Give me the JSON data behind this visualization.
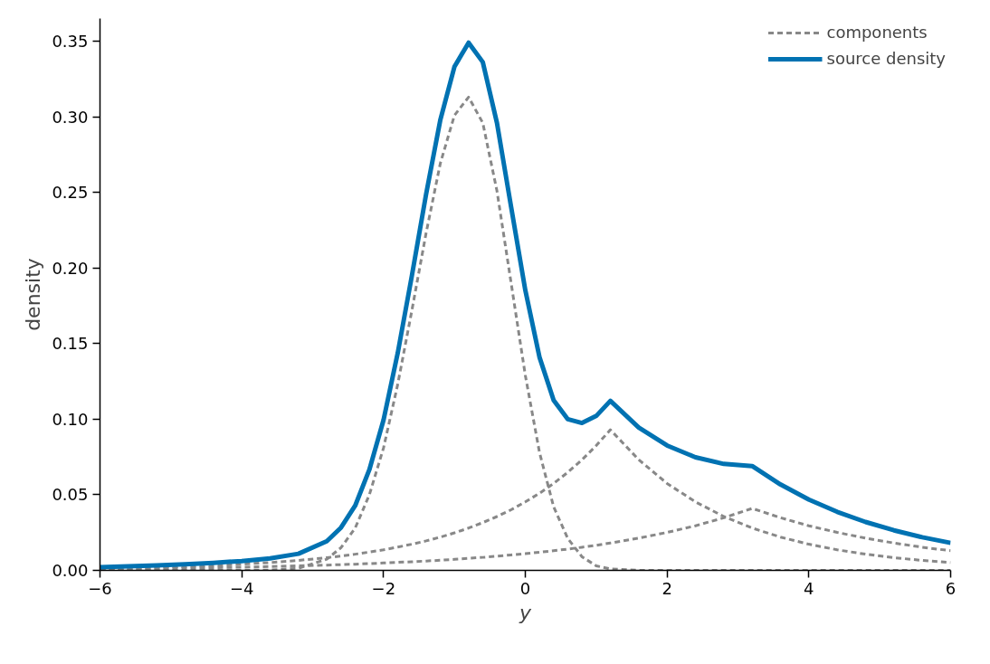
{
  "chart_data": {
    "type": "line",
    "xlabel": "y",
    "ylabel": "density",
    "x": [
      -6,
      -5.6,
      -5.2,
      -4.8,
      -4.4,
      -4,
      -3.6,
      -3.2,
      -2.8,
      -2.6,
      -2.4,
      -2.2,
      -2,
      -1.8,
      -1.6,
      -1.4,
      -1.2,
      -1,
      -0.8,
      -0.6,
      -0.4,
      -0.2,
      0,
      0.2,
      0.4,
      0.6,
      0.8,
      1,
      1.2,
      1.6,
      2,
      2.4,
      2.8,
      3.2,
      3.6,
      4,
      4.4,
      4.8,
      5.2,
      5.6,
      6
    ],
    "series": [
      {
        "name": "components",
        "color": "#888888",
        "line_style": "dashed",
        "values": [
          0,
          0,
          0,
          0,
          0,
          0,
          0.0002,
          0.0014,
          0.0074,
          0.015,
          0.028,
          0.05,
          0.081,
          0.123,
          0.172,
          0.223,
          0.269,
          0.301,
          0.313,
          0.296,
          0.251,
          0.19,
          0.129,
          0.078,
          0.042,
          0.021,
          0.009,
          0.003,
          0.001,
          0,
          0,
          0,
          0,
          0,
          0,
          0,
          0,
          0,
          0,
          0,
          0
        ]
      },
      {
        "color": "#888888",
        "line_style": "dashed",
        "values": [
          0.0012,
          0.0016,
          0.002,
          0.0025,
          0.0032,
          0.0041,
          0.0052,
          0.0066,
          0.0084,
          0.0095,
          0.0107,
          0.0121,
          0.0136,
          0.0154,
          0.0173,
          0.0195,
          0.022,
          0.0248,
          0.028,
          0.0316,
          0.0356,
          0.0401,
          0.0453,
          0.051,
          0.0575,
          0.0649,
          0.0732,
          0.0825,
          0.093,
          0.0732,
          0.0575,
          0.0453,
          0.0356,
          0.028,
          0.022,
          0.0173,
          0.0136,
          0.0107,
          0.0084,
          0.0066,
          0.0052
        ]
      },
      {
        "color": "#888888",
        "line_style": "dashed",
        "values": [
          0.0009,
          0.0011,
          0.0013,
          0.0015,
          0.0018,
          0.0021,
          0.0025,
          0.003,
          0.0035,
          0.0038,
          0.0041,
          0.0045,
          0.0049,
          0.0053,
          0.0057,
          0.0062,
          0.0067,
          0.0073,
          0.008,
          0.0086,
          0.0094,
          0.0102,
          0.011,
          0.012,
          0.013,
          0.0141,
          0.0153,
          0.0166,
          0.0181,
          0.0213,
          0.0251,
          0.0295,
          0.0348,
          0.041,
          0.0348,
          0.0295,
          0.0251,
          0.0213,
          0.0181,
          0.0153,
          0.013
        ]
      },
      {
        "name": "source density",
        "color": "#0072b2",
        "line_style": "solid",
        "values": [
          0.0021,
          0.0027,
          0.0033,
          0.004,
          0.005,
          0.0062,
          0.0079,
          0.011,
          0.0193,
          0.0283,
          0.0428,
          0.0666,
          0.0995,
          0.1437,
          0.195,
          0.2487,
          0.2977,
          0.3331,
          0.349,
          0.3362,
          0.296,
          0.2403,
          0.1853,
          0.141,
          0.1125,
          0.1,
          0.0975,
          0.1021,
          0.1121,
          0.0945,
          0.0826,
          0.0748,
          0.0704,
          0.069,
          0.0568,
          0.0468,
          0.0387,
          0.032,
          0.0265,
          0.0219,
          0.0182
        ]
      }
    ],
    "xlim": [
      -6,
      6
    ],
    "xticks": [
      {
        "value": -6,
        "label": "−6"
      },
      {
        "value": -4,
        "label": "−4"
      },
      {
        "value": -2,
        "label": "−2"
      },
      0,
      2,
      4,
      6
    ],
    "ylim": [
      0,
      0.365
    ],
    "yticks": [
      {
        "value": 0,
        "label": "0.00"
      },
      0.05,
      {
        "value": 0.1,
        "label": "0.10"
      },
      0.15,
      {
        "value": 0.2,
        "label": "0.20"
      },
      0.25,
      {
        "value": 0.3,
        "label": "0.30"
      },
      0.35
    ],
    "grid": false,
    "legend": "top right",
    "marker": "none"
  }
}
